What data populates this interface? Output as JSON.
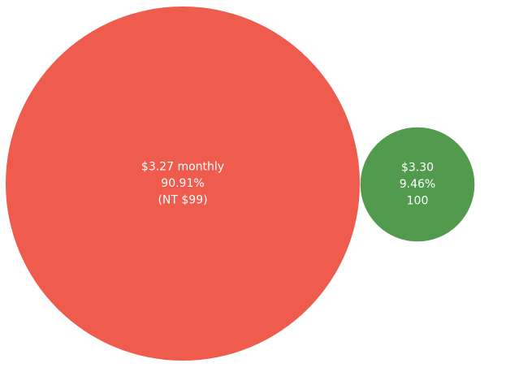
{
  "chart_data": {
    "type": "bubble",
    "title": "",
    "legend": "none",
    "bubbles": [
      {
        "name": "a",
        "value": 90.91,
        "color": "#EF5B4D",
        "labels": [
          "$3.27 monthly",
          "90.91%",
          "(NT $99)"
        ]
      },
      {
        "name": "b",
        "value": 9.46,
        "color": "#529A4E",
        "labels": [
          "$3.30",
          "9.46%",
          "100"
        ]
      }
    ]
  }
}
